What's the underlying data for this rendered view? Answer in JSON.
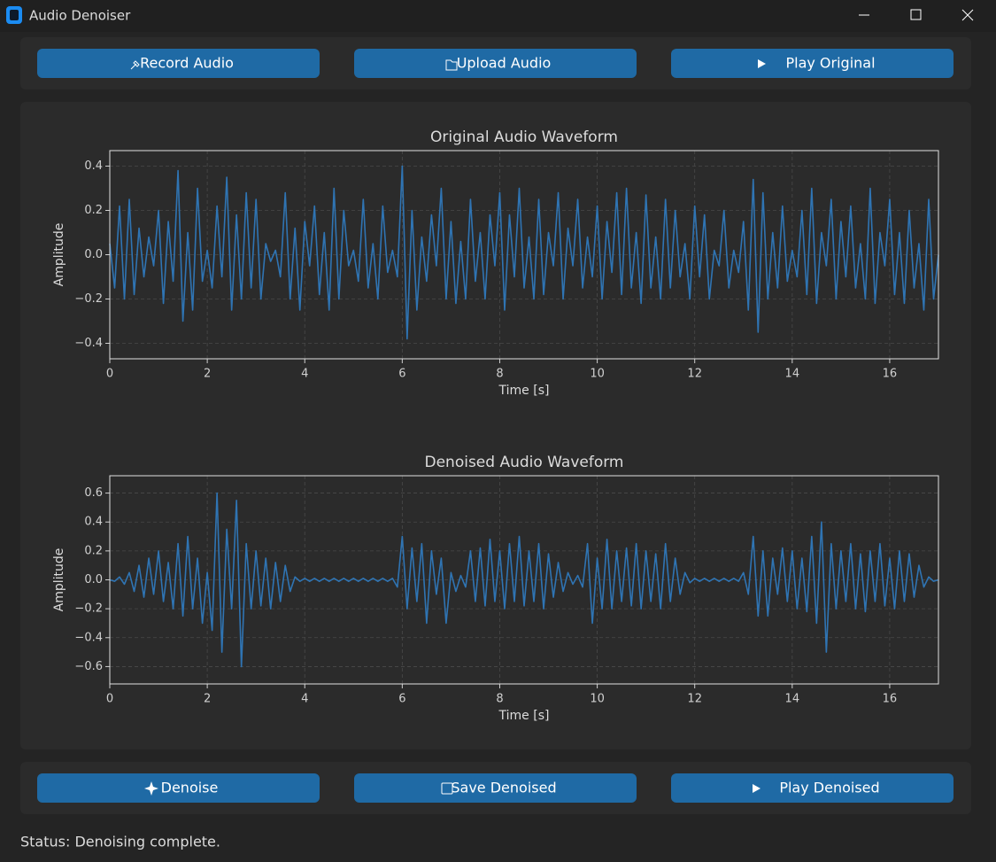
{
  "window": {
    "title": "Audio Denoiser"
  },
  "top_buttons": [
    "Record Audio",
    "Upload Audio",
    "Play Original"
  ],
  "bottom_buttons": [
    "Denoise",
    "Save Denoised",
    "Play Denoised"
  ],
  "status": "Status: Denoising complete.",
  "chart_data": [
    {
      "type": "line",
      "title": "Original Audio Waveform",
      "x_label": "Time [s]",
      "y_label": "Amplitude",
      "color": "#2f74b3",
      "grid": true,
      "xlim": [
        0,
        17
      ],
      "xticks": [
        0,
        2,
        4,
        6,
        8,
        10,
        12,
        14,
        16
      ],
      "ylim": [
        -0.47,
        0.47
      ],
      "yticks": [
        {
          "value": -0.4,
          "label": "−0.4"
        },
        {
          "value": -0.2,
          "label": "−0.2"
        },
        {
          "value": 0,
          "label": "0.0"
        },
        {
          "value": 0.2,
          "label": "0.2"
        },
        {
          "value": 0.4,
          "label": "0.4"
        }
      ],
      "x": [
        0,
        0.1,
        0.2,
        0.3,
        0.4,
        0.5,
        0.6,
        0.7,
        0.8,
        0.9,
        1,
        1.1,
        1.2,
        1.3,
        1.4,
        1.5,
        1.6,
        1.7,
        1.8,
        1.9,
        2,
        2.1,
        2.2,
        2.3,
        2.4,
        2.5,
        2.6,
        2.7,
        2.8,
        2.9,
        3,
        3.1,
        3.2,
        3.3,
        3.4,
        3.5,
        3.6,
        3.7,
        3.8,
        3.9,
        4,
        4.1,
        4.2,
        4.3,
        4.4,
        4.5,
        4.6,
        4.7,
        4.8,
        4.9,
        5,
        5.1,
        5.2,
        5.3,
        5.4,
        5.5,
        5.6,
        5.7,
        5.8,
        5.9,
        6,
        6.1,
        6.2,
        6.3,
        6.4,
        6.5,
        6.6,
        6.7,
        6.8,
        6.9,
        7,
        7.1,
        7.2,
        7.3,
        7.4,
        7.5,
        7.6,
        7.7,
        7.8,
        7.9,
        8,
        8.1,
        8.2,
        8.3,
        8.4,
        8.5,
        8.6,
        8.7,
        8.8,
        8.9,
        9,
        9.1,
        9.2,
        9.3,
        9.4,
        9.5,
        9.6,
        9.7,
        9.8,
        9.9,
        10,
        10.1,
        10.2,
        10.3,
        10.4,
        10.5,
        10.6,
        10.7,
        10.8,
        10.9,
        11,
        11.1,
        11.2,
        11.3,
        11.4,
        11.5,
        11.6,
        11.7,
        11.8,
        11.9,
        12,
        12.1,
        12.2,
        12.3,
        12.4,
        12.5,
        12.6,
        12.7,
        12.8,
        12.9,
        13,
        13.1,
        13.2,
        13.3,
        13.4,
        13.5,
        13.6,
        13.7,
        13.8,
        13.9,
        14,
        14.1,
        14.2,
        14.3,
        14.4,
        14.5,
        14.6,
        14.7,
        14.8,
        14.9,
        15,
        15.1,
        15.2,
        15.3,
        15.4,
        15.5,
        15.6,
        15.7,
        15.8,
        15.9,
        16,
        16.1,
        16.2,
        16.3,
        16.4,
        16.5,
        16.6,
        16.7,
        16.8,
        16.9,
        17
      ],
      "values": [
        0.05,
        -0.15,
        0.22,
        -0.2,
        0.25,
        -0.18,
        0.12,
        -0.1,
        0.08,
        -0.05,
        0.2,
        -0.22,
        0.15,
        -0.12,
        0.38,
        -0.3,
        0.1,
        -0.25,
        0.3,
        -0.12,
        0.02,
        -0.15,
        0.22,
        -0.1,
        0.35,
        -0.25,
        0.18,
        -0.2,
        0.28,
        -0.15,
        0.25,
        -0.2,
        0.05,
        -0.03,
        0.02,
        -0.1,
        0.28,
        -0.2,
        0.12,
        -0.25,
        0.15,
        -0.05,
        0.22,
        -0.18,
        0.1,
        -0.25,
        0.3,
        -0.2,
        0.2,
        -0.05,
        0.02,
        -0.12,
        0.25,
        -0.15,
        0.05,
        -0.2,
        0.22,
        -0.08,
        0.02,
        -0.1,
        0.4,
        -0.38,
        0.2,
        -0.25,
        0.08,
        -0.12,
        0.18,
        -0.05,
        0.3,
        -0.2,
        0.15,
        -0.22,
        0.06,
        -0.2,
        0.25,
        -0.12,
        0.1,
        -0.2,
        0.18,
        -0.05,
        0.28,
        -0.25,
        0.18,
        -0.1,
        0.3,
        -0.15,
        0.08,
        -0.2,
        0.25,
        -0.18,
        0.1,
        -0.05,
        0.28,
        -0.2,
        0.12,
        -0.05,
        0.25,
        -0.15,
        0.08,
        -0.1,
        0.22,
        -0.2,
        0.15,
        -0.08,
        0.28,
        -0.18,
        0.3,
        -0.15,
        0.1,
        -0.22,
        0.27,
        -0.15,
        0.08,
        -0.2,
        0.25,
        -0.15,
        0.2,
        -0.1,
        0.05,
        -0.2,
        0.22,
        -0.1,
        0.18,
        -0.2,
        0.02,
        -0.05,
        0.2,
        -0.15,
        0.02,
        -0.08,
        0.15,
        -0.25,
        0.34,
        -0.35,
        0.28,
        -0.2,
        0.1,
        -0.15,
        0.22,
        -0.12,
        0.02,
        -0.1,
        0.2,
        -0.18,
        0.3,
        -0.22,
        0.1,
        -0.05,
        0.25,
        -0.2,
        0.15,
        -0.1,
        0.22,
        -0.15,
        0.05,
        -0.2,
        0.3,
        -0.22,
        0.1,
        -0.05,
        0.25,
        -0.18,
        0.1,
        -0.22,
        0.2,
        -0.15,
        0.05,
        -0.25,
        0.25,
        -0.2,
        0
      ]
    },
    {
      "type": "line",
      "title": "Denoised Audio Waveform",
      "x_label": "Time [s]",
      "y_label": "Amplitude",
      "color": "#2f74b3",
      "grid": true,
      "xlim": [
        0,
        17
      ],
      "xticks": [
        0,
        2,
        4,
        6,
        8,
        10,
        12,
        14,
        16
      ],
      "ylim": [
        -0.72,
        0.72
      ],
      "yticks": [
        {
          "value": -0.6,
          "label": "−0.6"
        },
        {
          "value": -0.4,
          "label": "−0.4"
        },
        {
          "value": -0.2,
          "label": "−0.2"
        },
        {
          "value": 0,
          "label": "0.0"
        },
        {
          "value": 0.2,
          "label": "0.2"
        },
        {
          "value": 0.4,
          "label": "0.4"
        },
        {
          "value": 0.6,
          "label": "0.6"
        }
      ],
      "x": [
        0,
        0.1,
        0.2,
        0.3,
        0.4,
        0.5,
        0.6,
        0.7,
        0.8,
        0.9,
        1,
        1.1,
        1.2,
        1.3,
        1.4,
        1.5,
        1.6,
        1.7,
        1.8,
        1.9,
        2,
        2.1,
        2.2,
        2.3,
        2.4,
        2.5,
        2.6,
        2.7,
        2.8,
        2.9,
        3,
        3.1,
        3.2,
        3.3,
        3.4,
        3.5,
        3.6,
        3.7,
        3.8,
        3.9,
        4,
        4.1,
        4.2,
        4.3,
        4.4,
        4.5,
        4.6,
        4.7,
        4.8,
        4.9,
        5,
        5.1,
        5.2,
        5.3,
        5.4,
        5.5,
        5.6,
        5.7,
        5.8,
        5.9,
        6,
        6.1,
        6.2,
        6.3,
        6.4,
        6.5,
        6.6,
        6.7,
        6.8,
        6.9,
        7,
        7.1,
        7.2,
        7.3,
        7.4,
        7.5,
        7.6,
        7.7,
        7.8,
        7.9,
        8,
        8.1,
        8.2,
        8.3,
        8.4,
        8.5,
        8.6,
        8.7,
        8.8,
        8.9,
        9,
        9.1,
        9.2,
        9.3,
        9.4,
        9.5,
        9.6,
        9.7,
        9.8,
        9.9,
        10,
        10.1,
        10.2,
        10.3,
        10.4,
        10.5,
        10.6,
        10.7,
        10.8,
        10.9,
        11,
        11.1,
        11.2,
        11.3,
        11.4,
        11.5,
        11.6,
        11.7,
        11.8,
        11.9,
        12,
        12.1,
        12.2,
        12.3,
        12.4,
        12.5,
        12.6,
        12.7,
        12.8,
        12.9,
        13,
        13.1,
        13.2,
        13.3,
        13.4,
        13.5,
        13.6,
        13.7,
        13.8,
        13.9,
        14,
        14.1,
        14.2,
        14.3,
        14.4,
        14.5,
        14.6,
        14.7,
        14.8,
        14.9,
        15,
        15.1,
        15.2,
        15.3,
        15.4,
        15.5,
        15.6,
        15.7,
        15.8,
        15.9,
        16,
        16.1,
        16.2,
        16.3,
        16.4,
        16.5,
        16.6,
        16.7,
        16.8,
        16.9,
        17
      ],
      "values": [
        0,
        -0.01,
        0.02,
        -0.03,
        0.05,
        -0.08,
        0.1,
        -0.12,
        0.15,
        -0.1,
        0.2,
        -0.15,
        0.12,
        -0.2,
        0.25,
        -0.25,
        0.3,
        -0.2,
        0.15,
        -0.3,
        0.05,
        -0.35,
        0.6,
        -0.5,
        0.35,
        -0.2,
        0.55,
        -0.6,
        0.25,
        -0.2,
        0.2,
        -0.18,
        0.15,
        -0.2,
        0.12,
        -0.15,
        0.1,
        -0.08,
        0.02,
        -0.01,
        0.01,
        -0.01,
        0.01,
        -0.01,
        0.01,
        -0.01,
        0.01,
        -0.01,
        0.01,
        -0.01,
        0.01,
        -0.01,
        0.01,
        -0.01,
        0.01,
        -0.01,
        0.01,
        -0.01,
        0.01,
        -0.05,
        0.3,
        -0.2,
        0.22,
        -0.15,
        0.25,
        -0.3,
        0.2,
        -0.1,
        0.15,
        -0.3,
        0.05,
        -0.08,
        0.03,
        -0.05,
        0.2,
        -0.15,
        0.22,
        -0.18,
        0.28,
        -0.15,
        0.2,
        -0.2,
        0.25,
        -0.15,
        0.3,
        -0.18,
        0.2,
        -0.15,
        0.25,
        -0.2,
        0.18,
        -0.12,
        0.12,
        -0.08,
        0.05,
        -0.03,
        0.03,
        -0.05,
        0.25,
        -0.3,
        0.15,
        -0.2,
        0.28,
        -0.2,
        0.2,
        -0.15,
        0.22,
        -0.18,
        0.25,
        -0.2,
        0.2,
        -0.15,
        0.18,
        -0.2,
        0.25,
        -0.15,
        0.15,
        -0.1,
        0.05,
        -0.02,
        0.01,
        -0.01,
        0.01,
        -0.01,
        0.01,
        -0.01,
        0.01,
        -0.01,
        0.01,
        -0.01,
        0.05,
        -0.1,
        0.3,
        -0.25,
        0.2,
        -0.25,
        0.15,
        -0.1,
        0.22,
        -0.15,
        0.2,
        -0.2,
        0.15,
        -0.22,
        0.3,
        -0.3,
        0.4,
        -0.5,
        0.25,
        -0.2,
        0.2,
        -0.15,
        0.25,
        -0.2,
        0.18,
        -0.22,
        0.2,
        -0.15,
        0.25,
        -0.18,
        0.15,
        -0.2,
        0.2,
        -0.15,
        0.18,
        -0.12,
        0.1,
        -0.05,
        0.02,
        -0.01,
        0
      ]
    }
  ]
}
